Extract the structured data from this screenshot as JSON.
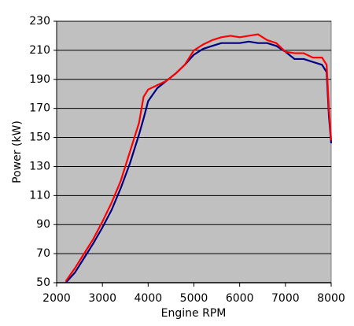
{
  "chart_data": {
    "type": "line",
    "x_label": "Engine RPM",
    "y_label": "Power (kW)",
    "x": [
      2200,
      2400,
      2600,
      2800,
      3000,
      3200,
      3400,
      3600,
      3800,
      3900,
      4000,
      4200,
      4400,
      4600,
      4800,
      5000,
      5200,
      5400,
      5600,
      5800,
      6000,
      6200,
      6400,
      6600,
      6800,
      7000,
      7200,
      7400,
      7600,
      7800,
      7900,
      7950,
      8000
    ],
    "series": [
      {
        "color": "#ff0000",
        "values": [
          51,
          60,
          70,
          80,
          92,
          105,
          120,
          140,
          160,
          178,
          183,
          186,
          189,
          194,
          200,
          210,
          214,
          217,
          219,
          220,
          219,
          220,
          221,
          217,
          215,
          209,
          208,
          208,
          205,
          205,
          200,
          170,
          148
        ]
      },
      {
        "color": "#000080",
        "values": [
          50,
          57,
          67,
          77,
          88,
          100,
          115,
          132,
          152,
          163,
          175,
          184,
          189,
          194,
          200,
          207,
          211,
          213,
          215,
          215,
          215,
          216,
          215,
          215,
          213,
          209,
          204,
          204,
          202,
          200,
          195,
          165,
          146
        ]
      }
    ],
    "xlim": [
      2000,
      8000
    ],
    "xticks": [
      2000,
      3000,
      4000,
      5000,
      6000,
      7000,
      8000
    ],
    "ylim": [
      50,
      230
    ],
    "yticks": [
      50,
      70,
      90,
      110,
      130,
      150,
      170,
      190,
      210,
      230
    ],
    "grid": true,
    "background": "#c0c0c0"
  }
}
